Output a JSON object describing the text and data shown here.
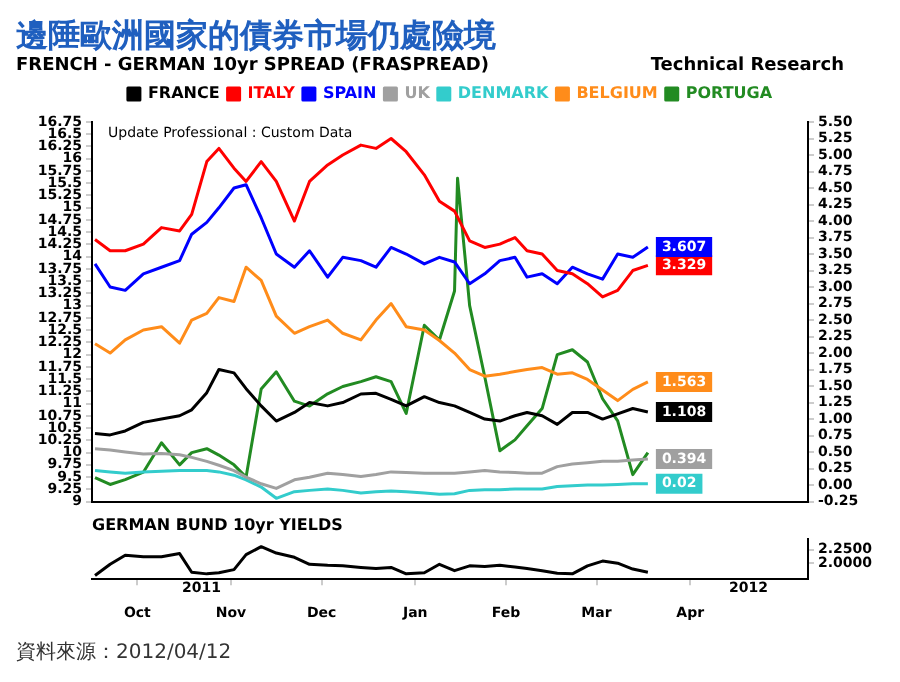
{
  "chart_data": [
    {
      "type": "line",
      "title": "邊陲歐洲國家的債券市場仍處險境",
      "subtitle": "FRENCH - GERMAN 10yr SPREAD (FRASPREAD)",
      "annotations": [
        "Technical Research",
        "Update Professional : Custom Data"
      ],
      "x": [
        "2011-10-02",
        "2011-10-07",
        "2011-10-12",
        "2011-10-18",
        "2011-10-24",
        "2011-10-30",
        "2011-11-03",
        "2011-11-08",
        "2011-11-12",
        "2011-11-17",
        "2011-11-21",
        "2011-11-26",
        "2011-12-01",
        "2011-12-07",
        "2011-12-12",
        "2011-12-18",
        "2011-12-23",
        "2011-12-29",
        "2012-01-03",
        "2012-01-08",
        "2012-01-13",
        "2012-01-19",
        "2012-01-24",
        "2012-01-29",
        "2012-02-03",
        "2012-02-08",
        "2012-02-13",
        "2012-02-18",
        "2012-02-22",
        "2012-02-27",
        "2012-03-03",
        "2012-03-08",
        "2012-03-13",
        "2012-03-18",
        "2012-03-23",
        "2012-03-28",
        "2012-04-02"
      ],
      "xlim": [
        "2011-10-01",
        "2012-05-25"
      ],
      "ylim": [
        9,
        16.75
      ],
      "yticks": [
        9,
        9.25,
        9.5,
        9.75,
        10,
        10.25,
        10.5,
        10.75,
        11,
        11.25,
        11.5,
        11.75,
        12,
        12.25,
        12.5,
        12.75,
        13,
        13.25,
        13.5,
        13.75,
        14,
        14.25,
        14.5,
        14.75,
        15,
        15.25,
        15.5,
        15.75,
        16,
        16.25,
        16.5,
        16.75
      ],
      "y2lim": [
        -0.25,
        5.5
      ],
      "y2ticks": [
        {
          "value": -0.25,
          "label": "-0.25"
        },
        {
          "value": 0,
          "label": "0.00"
        },
        {
          "value": 0.25,
          "label": "0.25"
        },
        {
          "value": 0.5,
          "label": "0.50"
        },
        {
          "value": 0.75,
          "label": "0.75"
        },
        {
          "value": 1,
          "label": "1.00"
        },
        {
          "value": 1.25,
          "label": "1.25"
        },
        {
          "value": 1.5,
          "label": "1.50"
        },
        {
          "value": 1.75,
          "label": "1.75"
        },
        {
          "value": 2,
          "label": "2.00"
        },
        {
          "value": 2.25,
          "label": "2.25"
        },
        {
          "value": 2.5,
          "label": "2.50"
        },
        {
          "value": 2.75,
          "label": "2.75"
        },
        {
          "value": 3,
          "label": "3.00"
        },
        {
          "value": 3.25,
          "label": "3.25"
        },
        {
          "value": 3.5,
          "label": "3.50"
        },
        {
          "value": 3.75,
          "label": "3.75"
        },
        {
          "value": 4,
          "label": "4.00"
        },
        {
          "value": 4.25,
          "label": "4.25"
        },
        {
          "value": 4.5,
          "label": "4.50"
        },
        {
          "value": 4.75,
          "label": "4.75"
        },
        {
          "value": 5,
          "label": "5.00"
        },
        {
          "value": 5.25,
          "label": "5.25"
        },
        {
          "value": 5.5,
          "label": "5.50"
        }
      ],
      "tick_labels": "y",
      "legend": "top",
      "marker": "none",
      "line_style": "solid",
      "grid": false,
      "series": [
        {
          "name": "FRANCE",
          "color": "#000000",
          "axis": "y2",
          "values": [
            0.78,
            0.76,
            0.82,
            0.95,
            1.0,
            1.05,
            1.14,
            1.4,
            1.75,
            1.7,
            1.46,
            1.2,
            0.97,
            1.1,
            1.25,
            1.2,
            1.25,
            1.38,
            1.39,
            1.3,
            1.2,
            1.34,
            1.25,
            1.2,
            1.1,
            1.0,
            0.97,
            1.05,
            1.1,
            1.05,
            0.92,
            1.1,
            1.1,
            1.0,
            1.08,
            1.16,
            1.108
          ],
          "value_labels": [
            null,
            null,
            null,
            null,
            null,
            null,
            null,
            null,
            null,
            null,
            null,
            null,
            null,
            null,
            null,
            null,
            null,
            null,
            null,
            null,
            null,
            null,
            null,
            null,
            null,
            null,
            null,
            null,
            null,
            null,
            null,
            null,
            null,
            null,
            null,
            null,
            "1.108"
          ]
        },
        {
          "name": "ITALY",
          "color": "#ff0000",
          "axis": "y2",
          "values": [
            3.72,
            3.55,
            3.55,
            3.65,
            3.9,
            3.85,
            4.1,
            4.9,
            5.1,
            4.8,
            4.6,
            4.9,
            4.6,
            4.0,
            4.6,
            4.85,
            5.0,
            5.15,
            5.1,
            5.25,
            5.05,
            4.7,
            4.3,
            4.15,
            3.7,
            3.6,
            3.65,
            3.75,
            3.55,
            3.5,
            3.25,
            3.2,
            3.05,
            2.85,
            2.95,
            3.25,
            3.329
          ],
          "value_labels": [
            null,
            null,
            null,
            null,
            null,
            null,
            null,
            null,
            null,
            null,
            null,
            null,
            null,
            null,
            null,
            null,
            null,
            null,
            null,
            null,
            null,
            null,
            null,
            null,
            null,
            null,
            null,
            null,
            null,
            null,
            null,
            null,
            null,
            null,
            null,
            null,
            "3.329"
          ]
        },
        {
          "name": "SPAIN",
          "color": "#0000ff",
          "axis": "y2",
          "values": [
            3.35,
            3.0,
            2.95,
            3.2,
            3.3,
            3.4,
            3.8,
            3.98,
            4.2,
            4.5,
            4.55,
            4.05,
            3.5,
            3.3,
            3.55,
            3.15,
            3.45,
            3.4,
            3.3,
            3.6,
            3.5,
            3.35,
            3.45,
            3.38,
            3.05,
            3.2,
            3.4,
            3.45,
            3.15,
            3.2,
            3.05,
            3.3,
            3.2,
            3.12,
            3.5,
            3.45,
            3.607
          ],
          "value_labels": [
            null,
            null,
            null,
            null,
            null,
            null,
            null,
            null,
            null,
            null,
            null,
            null,
            null,
            null,
            null,
            null,
            null,
            null,
            null,
            null,
            null,
            null,
            null,
            null,
            null,
            null,
            null,
            null,
            null,
            null,
            null,
            null,
            null,
            null,
            null,
            null,
            "3.607"
          ]
        },
        {
          "name": "UK",
          "color": "#a0a0a0",
          "axis": "y2",
          "values": [
            0.55,
            0.53,
            0.5,
            0.47,
            0.48,
            0.46,
            0.42,
            0.36,
            0.3,
            0.22,
            0.12,
            0.02,
            -0.05,
            0.08,
            0.12,
            0.18,
            0.16,
            0.13,
            0.16,
            0.2,
            0.19,
            0.18,
            0.18,
            0.18,
            0.2,
            0.22,
            0.2,
            0.19,
            0.18,
            0.18,
            0.28,
            0.32,
            0.34,
            0.36,
            0.36,
            0.38,
            0.394
          ],
          "value_labels": [
            null,
            null,
            null,
            null,
            null,
            null,
            null,
            null,
            null,
            null,
            null,
            null,
            null,
            null,
            null,
            null,
            null,
            null,
            null,
            null,
            null,
            null,
            null,
            null,
            null,
            null,
            null,
            null,
            null,
            null,
            null,
            null,
            null,
            null,
            null,
            null,
            "0.394"
          ]
        },
        {
          "name": "DENMARK",
          "color": "#33cccc",
          "axis": "y2",
          "values": [
            0.22,
            0.2,
            0.18,
            0.2,
            0.21,
            0.22,
            0.22,
            0.22,
            0.2,
            0.15,
            0.08,
            -0.03,
            -0.2,
            -0.1,
            -0.08,
            -0.06,
            -0.08,
            -0.12,
            -0.1,
            -0.09,
            -0.1,
            -0.12,
            -0.14,
            -0.13,
            -0.08,
            -0.07,
            -0.07,
            -0.06,
            -0.06,
            -0.06,
            -0.02,
            -0.01,
            0.0,
            0.0,
            0.01,
            0.02,
            0.02
          ],
          "value_labels": [
            null,
            null,
            null,
            null,
            null,
            null,
            null,
            null,
            null,
            null,
            null,
            null,
            null,
            null,
            null,
            null,
            null,
            null,
            null,
            null,
            null,
            null,
            null,
            null,
            null,
            null,
            null,
            null,
            null,
            null,
            null,
            null,
            null,
            null,
            null,
            null,
            "0.02"
          ]
        },
        {
          "name": "BELGIUM",
          "color": "#ff8c1a",
          "axis": "y2",
          "values": [
            2.14,
            2.0,
            2.2,
            2.35,
            2.4,
            2.15,
            2.5,
            2.6,
            2.84,
            2.78,
            3.3,
            3.1,
            2.56,
            2.3,
            2.4,
            2.5,
            2.3,
            2.2,
            2.5,
            2.75,
            2.4,
            2.35,
            2.19,
            2.0,
            1.75,
            1.65,
            1.68,
            1.72,
            1.75,
            1.78,
            1.68,
            1.7,
            1.6,
            1.44,
            1.28,
            1.45,
            1.563
          ],
          "value_labels": [
            null,
            null,
            null,
            null,
            null,
            null,
            null,
            null,
            null,
            null,
            null,
            null,
            null,
            null,
            null,
            null,
            null,
            null,
            null,
            null,
            null,
            null,
            null,
            null,
            null,
            null,
            null,
            null,
            null,
            null,
            null,
            null,
            null,
            null,
            null,
            null,
            "1.563"
          ]
        },
        {
          "name": "PORTUGA",
          "color": "#228b22",
          "axis": "y",
          "x": [
            "2011-10-02",
            "2011-10-07",
            "2011-10-12",
            "2011-10-18",
            "2011-10-24",
            "2011-10-30",
            "2011-11-03",
            "2011-11-08",
            "2011-11-12",
            "2011-11-17",
            "2011-11-21",
            "2011-11-26",
            "2011-12-01",
            "2011-12-07",
            "2011-12-12",
            "2011-12-18",
            "2011-12-23",
            "2011-12-29",
            "2012-01-03",
            "2012-01-08",
            "2012-01-13",
            "2012-01-19",
            "2012-01-24",
            "2012-01-29",
            "2012-01-30",
            "2012-02-03",
            "2012-02-08",
            "2012-02-13",
            "2012-02-18",
            "2012-02-22",
            "2012-02-27",
            "2012-03-03",
            "2012-03-08",
            "2012-03-13",
            "2012-03-18",
            "2012-03-23",
            "2012-03-28",
            "2012-04-02"
          ],
          "values": [
            9.49,
            9.35,
            9.45,
            9.6,
            10.2,
            9.75,
            10.0,
            10.08,
            9.95,
            9.75,
            9.5,
            11.3,
            11.65,
            11.05,
            10.95,
            11.2,
            11.35,
            11.45,
            11.55,
            11.45,
            10.8,
            12.6,
            12.3,
            13.3,
            15.6,
            13.0,
            11.55,
            10.04,
            10.26,
            10.55,
            10.9,
            12.0,
            12.1,
            11.85,
            11.1,
            10.65,
            9.55,
            10.0
          ]
        }
      ]
    },
    {
      "type": "line",
      "title": "GERMAN BUND 10yr YIELDS",
      "annotations": [
        "2011",
        "2012",
        "資料來源：2012/04/12"
      ],
      "x": [
        "2011-10-02",
        "2011-10-07",
        "2011-10-12",
        "2011-10-18",
        "2011-10-24",
        "2011-10-30",
        "2011-11-03",
        "2011-11-08",
        "2011-11-12",
        "2011-11-17",
        "2011-11-21",
        "2011-11-26",
        "2011-12-01",
        "2011-12-07",
        "2011-12-12",
        "2011-12-18",
        "2011-12-23",
        "2011-12-29",
        "2012-01-03",
        "2012-01-08",
        "2012-01-13",
        "2012-01-19",
        "2012-01-24",
        "2012-01-29",
        "2012-02-03",
        "2012-02-08",
        "2012-02-13",
        "2012-02-18",
        "2012-02-22",
        "2012-02-27",
        "2012-03-03",
        "2012-03-08",
        "2012-03-13",
        "2012-03-18",
        "2012-03-23",
        "2012-03-28",
        "2012-04-02"
      ],
      "xlim": [
        "2011-10-01",
        "2012-05-25"
      ],
      "xticks": [
        {
          "value": "2011-10-16",
          "label": "Oct"
        },
        {
          "value": "2011-11-16",
          "label": "Nov"
        },
        {
          "value": "2011-12-16",
          "label": "Dec"
        },
        {
          "value": "2012-01-16",
          "label": "Jan"
        },
        {
          "value": "2012-02-15",
          "label": "Feb"
        },
        {
          "value": "2012-03-16",
          "label": "Mar"
        },
        {
          "value": "2012-04-16",
          "label": "Apr"
        }
      ],
      "ylim": [
        1.7,
        2.45
      ],
      "yticks": [
        {
          "value": 2,
          "label": "2.0000"
        },
        {
          "value": 2.25,
          "label": "2.2500"
        }
      ],
      "legend": false,
      "marker": "none",
      "line_style": "solid",
      "grid": false,
      "series": [
        {
          "color": "#000000",
          "values": [
            1.77,
            1.98,
            2.15,
            2.12,
            2.12,
            2.18,
            1.83,
            1.8,
            1.82,
            1.88,
            2.16,
            2.31,
            2.19,
            2.11,
            1.98,
            1.96,
            1.95,
            1.92,
            1.9,
            1.92,
            1.8,
            1.82,
            1.98,
            1.86,
            1.95,
            1.94,
            1.96,
            1.93,
            1.9,
            1.86,
            1.81,
            1.8,
            1.95,
            2.04,
            2.0,
            1.89,
            1.83
          ]
        }
      ]
    }
  ]
}
